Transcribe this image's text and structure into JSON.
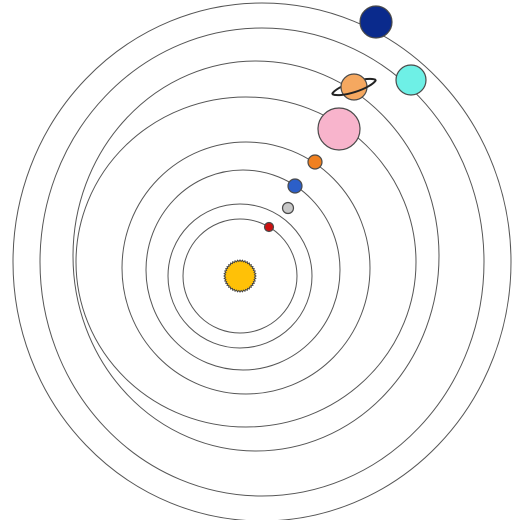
{
  "diagram": {
    "title": "",
    "sun": {
      "name": "sun",
      "color": "#ffc107",
      "icon": "sun-icon"
    },
    "planets": [
      {
        "name": "mercury",
        "color": "#cc1111",
        "order": 1
      },
      {
        "name": "venus",
        "color": "#c8c8c8",
        "order": 2
      },
      {
        "name": "earth",
        "color": "#2c5fc8",
        "order": 3
      },
      {
        "name": "mars",
        "color": "#f08020",
        "order": 4
      },
      {
        "name": "jupiter",
        "color": "#f8b4cc",
        "order": 5
      },
      {
        "name": "saturn",
        "color": "#f5a860",
        "order": 6,
        "has_ring": true
      },
      {
        "name": "uranus",
        "color": "#6ef0e6",
        "order": 7
      },
      {
        "name": "neptune",
        "color": "#0a2a8c",
        "order": 8
      }
    ]
  }
}
